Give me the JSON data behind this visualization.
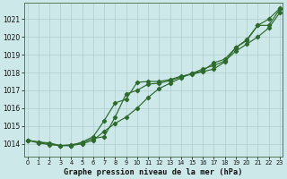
{
  "title": "Graphe pression niveau de la mer (hPa)",
  "xlabel_ticks": [
    0,
    1,
    2,
    3,
    4,
    5,
    6,
    7,
    8,
    9,
    10,
    11,
    12,
    13,
    14,
    15,
    16,
    17,
    18,
    19,
    20,
    21,
    22,
    23
  ],
  "ylim": [
    1013.3,
    1021.9
  ],
  "yticks": [
    1014,
    1015,
    1016,
    1017,
    1018,
    1019,
    1020,
    1021
  ],
  "xlim": [
    -0.3,
    23.3
  ],
  "bg_color": "#cde8e8",
  "grid_color": "#b0cccc",
  "line_color": "#2d6a2d",
  "line1": [
    1014.2,
    1014.1,
    1014.0,
    1013.9,
    1013.9,
    1014.0,
    1014.2,
    1014.7,
    1015.15,
    1015.5,
    1016.0,
    1016.6,
    1017.1,
    1017.4,
    1017.7,
    1017.95,
    1018.2,
    1018.4,
    1018.65,
    1019.2,
    1019.6,
    1020.0,
    1020.5,
    1021.35
  ],
  "line2": [
    1014.2,
    1014.1,
    1014.05,
    1013.9,
    1013.9,
    1014.1,
    1014.4,
    1015.3,
    1016.3,
    1016.5,
    1017.45,
    1017.5,
    1017.5,
    1017.6,
    1017.8,
    1017.9,
    1018.05,
    1018.2,
    1018.6,
    1019.4,
    1019.85,
    1020.65,
    1020.65,
    1021.55
  ],
  "line3": [
    1014.2,
    1014.05,
    1013.95,
    1013.9,
    1013.95,
    1014.05,
    1014.3,
    1014.4,
    1015.5,
    1016.8,
    1017.0,
    1017.35,
    1017.4,
    1017.55,
    1017.75,
    1017.95,
    1018.1,
    1018.55,
    1018.75,
    1019.4,
    1019.8,
    1020.65,
    1021.0,
    1021.6
  ]
}
